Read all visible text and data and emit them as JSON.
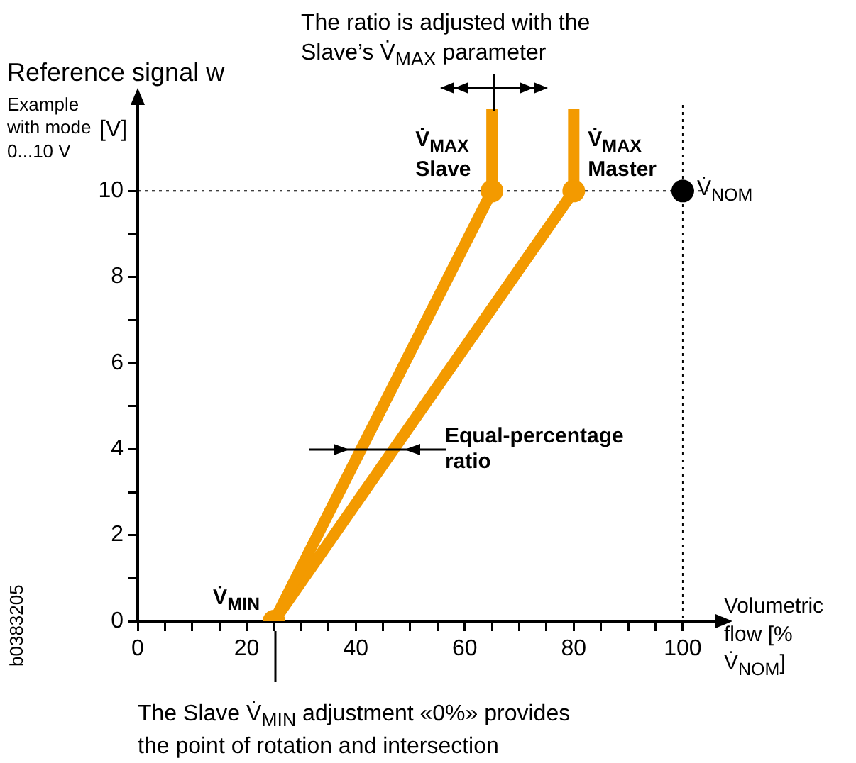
{
  "chart_data": {
    "type": "line",
    "title": "The ratio is adjusted with the Slave’s V̇$_{MAX}$ parameter",
    "xlabel": "Volumetric flow [% V̇$_{NOM}$]",
    "ylabel": "Reference signal w",
    "xlim": [
      0,
      106
    ],
    "ylim": [
      0,
      12
    ],
    "xticks": [
      0,
      {
        "value": 5,
        "label": null
      },
      {
        "value": 10,
        "label": null
      },
      {
        "value": 15,
        "label": null
      },
      20,
      {
        "value": 25,
        "label": null
      },
      {
        "value": 30,
        "label": null
      },
      {
        "value": 35,
        "label": null
      },
      40,
      {
        "value": 45,
        "label": null
      },
      {
        "value": 50,
        "label": null
      },
      {
        "value": 55,
        "label": null
      },
      60,
      {
        "value": 65,
        "label": null
      },
      {
        "value": 70,
        "label": null
      },
      {
        "value": 75,
        "label": null
      },
      80,
      {
        "value": 85,
        "label": null
      },
      {
        "value": 90,
        "label": null
      },
      {
        "value": 95,
        "label": null
      },
      100
    ],
    "yticks": [
      0,
      {
        "value": 1,
        "label": null
      },
      2,
      {
        "value": 3,
        "label": null
      },
      4,
      {
        "value": 5,
        "label": null
      },
      6,
      {
        "value": 7,
        "label": null
      },
      8,
      {
        "value": 9,
        "label": null
      },
      10
    ],
    "grid": false,
    "series": [
      {
        "type": "line",
        "color": "#f39a00",
        "x": [
          25,
          65,
          65
        ],
        "values": [
          0,
          10,
          11.9
        ],
        "marker": "none"
      },
      {
        "type": "line",
        "color": "#f39a00",
        "x": [
          25,
          80,
          80
        ],
        "values": [
          0,
          10,
          11.9
        ],
        "marker": "none"
      },
      {
        "type": "scatter",
        "color": "#f39a00",
        "x": [
          25,
          65,
          80
        ],
        "values": [
          0,
          10,
          10
        ],
        "marker": "circle"
      },
      {
        "type": "scatter",
        "color": "#000000",
        "x": [
          100
        ],
        "values": [
          10
        ],
        "marker": "circle"
      }
    ],
    "ref_lines": [
      {
        "axis": "y",
        "value": 10,
        "color": "#000000",
        "line_style": "dotted"
      },
      {
        "axis": "x",
        "value": 100,
        "color": "#000000",
        "line_style": "dotted"
      }
    ],
    "annotations": [
      "Example\nwith mode\n0...10 V",
      "[V]",
      {
        "text": "V̇$_{MAX}$\nSlave",
        "x": 65,
        "y": 10
      },
      {
        "text": "V̇$_{MAX}$\nMaster",
        "x": 80,
        "y": 10
      },
      {
        "text": "V̇$_{NOM}$",
        "x": 100,
        "y": 10
      },
      {
        "text": "V̇$_{MIN}$",
        "x": 25,
        "y": 0
      },
      {
        "text": "Equal-percentage\nratio",
        "x": 47,
        "y": 4
      },
      "The Slave V̇$_{MIN}$ adjustment «0%» provides\nthe point of rotation and intersection",
      "b0383205"
    ]
  }
}
